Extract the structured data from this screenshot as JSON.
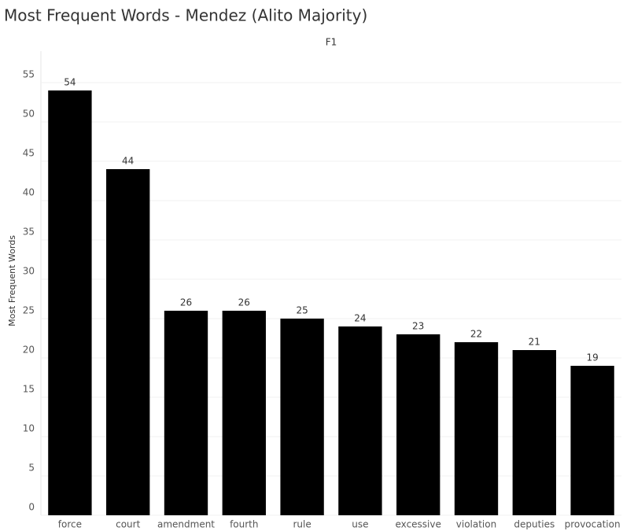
{
  "chart_data": {
    "type": "bar",
    "title": "Most Frequent Words - Mendez (Alito Majority)",
    "header": "F1",
    "y_label": "Most Frequent Words",
    "categories": [
      "force",
      "court",
      "amendment",
      "fourth",
      "rule",
      "use",
      "excessive",
      "violation",
      "deputies",
      "provocation"
    ],
    "values": [
      54,
      44,
      26,
      26,
      25,
      24,
      23,
      22,
      21,
      19
    ],
    "color": "#000000",
    "ylim": [
      0,
      59
    ],
    "yticks": [
      0,
      5,
      10,
      15,
      20,
      25,
      30,
      35,
      40,
      45,
      50,
      55
    ],
    "grid": true
  }
}
